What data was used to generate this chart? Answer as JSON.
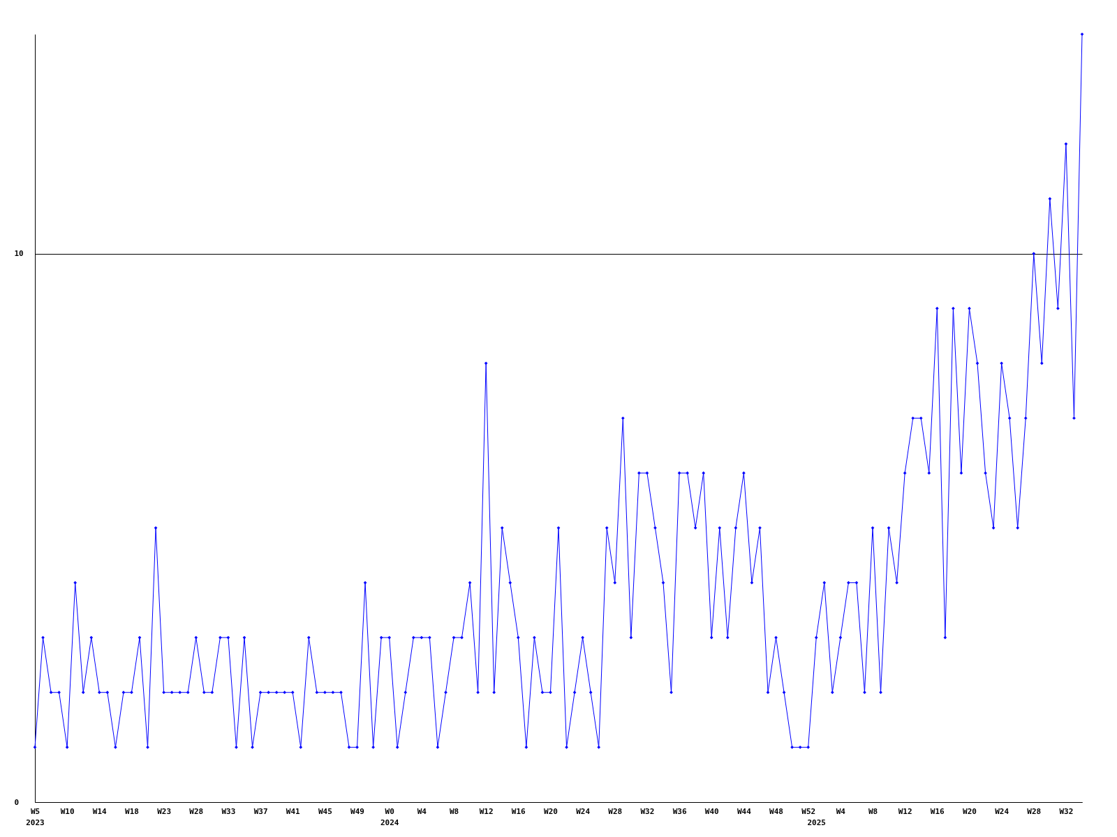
{
  "chart_data": {
    "type": "line",
    "color": "#0000ff",
    "marker": "diamond",
    "line_style": "solid",
    "grid": "y",
    "categories": [
      "W5\n2023",
      null,
      null,
      null,
      "W10",
      null,
      null,
      null,
      "W14",
      null,
      null,
      null,
      "W18",
      null,
      null,
      null,
      "W23",
      null,
      null,
      null,
      "W28",
      null,
      null,
      null,
      "W33",
      null,
      null,
      null,
      "W37",
      null,
      null,
      null,
      "W41",
      null,
      null,
      null,
      "W45",
      null,
      null,
      null,
      "W49",
      null,
      null,
      null,
      "W0\n2024",
      null,
      null,
      null,
      "W4",
      null,
      null,
      null,
      "W8",
      null,
      null,
      null,
      "W12",
      null,
      null,
      null,
      "W16",
      null,
      null,
      null,
      "W20",
      null,
      null,
      null,
      "W24",
      null,
      null,
      null,
      "W28",
      null,
      null,
      null,
      "W32",
      null,
      null,
      null,
      "W36",
      null,
      null,
      null,
      "W40",
      null,
      null,
      null,
      "W44",
      null,
      null,
      null,
      "W48",
      null,
      null,
      null,
      "W52",
      "\n2025",
      null,
      null,
      "W4",
      null,
      null,
      null,
      "W8",
      null,
      null,
      null,
      "W12",
      null,
      null,
      null,
      "W16",
      null,
      null,
      null,
      "W20",
      null,
      null,
      null,
      "W24",
      null,
      null,
      null,
      "W28",
      null,
      null,
      null,
      "W32",
      null,
      null
    ],
    "values": [
      1,
      3,
      2,
      2,
      1,
      4,
      2,
      3,
      2,
      2,
      1,
      2,
      2,
      3,
      1,
      5,
      2,
      2,
      2,
      2,
      3,
      2,
      2,
      3,
      3,
      1,
      3,
      1,
      2,
      2,
      2,
      2,
      2,
      1,
      3,
      2,
      2,
      2,
      2,
      1,
      1,
      4,
      1,
      3,
      3,
      1,
      2,
      3,
      3,
      3,
      1,
      2,
      3,
      3,
      4,
      2,
      8,
      2,
      5,
      4,
      3,
      1,
      3,
      2,
      2,
      5,
      1,
      2,
      3,
      2,
      1,
      5,
      4,
      7,
      3,
      6,
      6,
      5,
      4,
      2,
      6,
      6,
      5,
      6,
      3,
      5,
      3,
      5,
      6,
      4,
      5,
      2,
      3,
      2,
      1,
      1,
      1,
      3,
      4,
      2,
      3,
      4,
      4,
      2,
      5,
      2,
      5,
      4,
      6,
      7,
      7,
      6,
      9,
      3,
      9,
      6,
      9,
      8,
      6,
      5,
      8,
      7,
      5,
      7,
      10,
      8,
      11,
      9,
      12,
      7,
      14
    ],
    "ylim": [
      0,
      14
    ],
    "yticks": [
      0,
      10
    ]
  }
}
